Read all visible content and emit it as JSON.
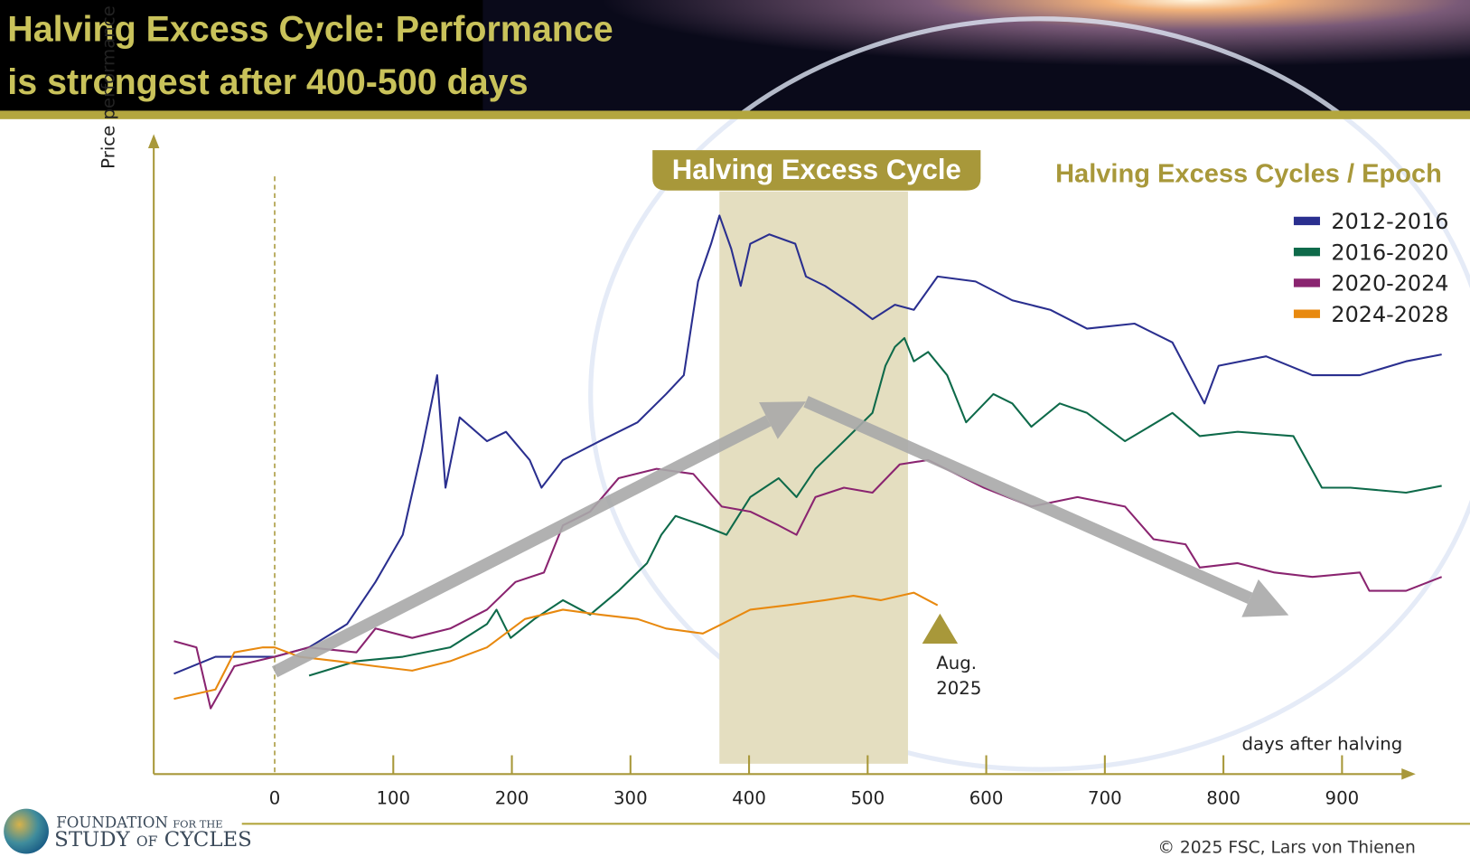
{
  "header": {
    "title_line1": "Halving Excess Cycle: Performance",
    "title_line2": "is strongest after 400-500 days"
  },
  "footer": {
    "logo_line1": "FOUNDATION",
    "logo_line1_small": "FOR THE",
    "logo_line2a": "STUDY",
    "logo_line2b": "OF",
    "logo_line2c": "CYCLES",
    "copyright": "© 2025 FSC, Lars von Thienen"
  },
  "colors": {
    "gold": "#a8983a",
    "band": "#e4dec0",
    "arrow": "#a9a9a9"
  },
  "chart_data": {
    "type": "line",
    "title": "Halving Excess Cycle",
    "legend_title": "Halving Excess Cycles / Epoch",
    "legend_placement": "top-right",
    "xlabel": "days after halving",
    "ylabel": "Price performance",
    "xlim": [
      -85,
      990
    ],
    "ylim": [
      0,
      100
    ],
    "grid": false,
    "x_ticks": [
      "0",
      "100",
      "200",
      "300",
      "400",
      "500",
      "600",
      "700",
      "800",
      "900"
    ],
    "highlight_band": {
      "label": "Halving Excess Cycle",
      "from_day": 375,
      "to_day": 534
    },
    "trend_arrows": [
      {
        "from": [
          0,
          17
        ],
        "to": [
          448,
          60
        ]
      },
      {
        "from": [
          448,
          60
        ],
        "to": [
          855,
          26
        ]
      }
    ],
    "annotation": {
      "text_line1": "Aug.",
      "text_line2": "2025",
      "day": 561
    },
    "series": [
      {
        "name": "2012-2016",
        "color": "#2a2f8f",
        "x": [
          -85,
          -50,
          0,
          29,
          61,
          85,
          108,
          124,
          137,
          144,
          156,
          179,
          195,
          215,
          225,
          243,
          274,
          306,
          330,
          345,
          357,
          368,
          375,
          385,
          393,
          401,
          417,
          439,
          448,
          464,
          488,
          504,
          523,
          539,
          559,
          591,
          622,
          654,
          685,
          725,
          757,
          784,
          796,
          836,
          875,
          915,
          954,
          984
        ],
        "y": [
          16.7,
          19.4,
          19.4,
          20.9,
          24.6,
          31.3,
          38.8,
          52.2,
          64.2,
          46.3,
          57.5,
          53.7,
          55.2,
          50.7,
          46.3,
          50.7,
          53.7,
          56.7,
          61.2,
          64.2,
          79.1,
          85.1,
          89.6,
          84.3,
          78.4,
          85.1,
          86.6,
          85.1,
          79.9,
          78.4,
          75.4,
          73.1,
          75.4,
          74.6,
          79.9,
          79.1,
          76.1,
          74.6,
          71.6,
          72.4,
          69.4,
          59.7,
          65.7,
          67.2,
          64.2,
          64.2,
          66.4,
          67.5
        ]
      },
      {
        "name": "2016-2020",
        "color": "#0e6a4a",
        "x": [
          29,
          69,
          108,
          148,
          179,
          187,
          199,
          219,
          243,
          266,
          290,
          314,
          326,
          338,
          361,
          381,
          401,
          425,
          440,
          456,
          480,
          504,
          515,
          523,
          531,
          539,
          551,
          567,
          583,
          606,
          622,
          638,
          662,
          685,
          717,
          757,
          780,
          812,
          859,
          883,
          907,
          954,
          984
        ],
        "y": [
          16.4,
          18.7,
          19.4,
          20.9,
          24.6,
          26.9,
          22.4,
          25.4,
          28.4,
          26.1,
          29.9,
          34.3,
          38.8,
          41.8,
          40.3,
          38.8,
          44.8,
          47.8,
          44.8,
          49.3,
          53.7,
          58.2,
          65.7,
          68.7,
          70.1,
          66.4,
          67.9,
          64.2,
          56.7,
          61.2,
          59.7,
          56.0,
          59.7,
          58.2,
          53.7,
          58.2,
          54.5,
          55.2,
          54.5,
          46.3,
          46.3,
          45.5,
          46.6
        ]
      },
      {
        "name": "2020-2024",
        "color": "#8a2470",
        "x": [
          -85,
          -66,
          -54,
          -34,
          0,
          29,
          69,
          85,
          116,
          148,
          179,
          203,
          227,
          243,
          266,
          290,
          322,
          353,
          377,
          401,
          425,
          440,
          456,
          480,
          504,
          527,
          551,
          598,
          638,
          677,
          717,
          741,
          768,
          780,
          812,
          843,
          875,
          915,
          923,
          954,
          984
        ],
        "y": [
          21.9,
          20.9,
          11.2,
          17.9,
          19.4,
          20.9,
          20.1,
          23.9,
          22.4,
          23.9,
          26.9,
          31.3,
          32.8,
          40.3,
          42.5,
          47.8,
          49.3,
          48.5,
          43.3,
          42.5,
          40.3,
          38.8,
          44.8,
          46.3,
          45.5,
          50.0,
          50.7,
          46.3,
          43.3,
          44.8,
          43.3,
          38.1,
          37.3,
          33.6,
          34.3,
          32.8,
          32.1,
          32.8,
          29.9,
          29.9,
          32.1
        ]
      },
      {
        "name": "2024-2028",
        "color": "#e8890f",
        "x": [
          -85,
          -50,
          -34,
          -10,
          0,
          21,
          53,
          85,
          116,
          148,
          179,
          211,
          243,
          274,
          306,
          330,
          361,
          377,
          401,
          432,
          464,
          488,
          511,
          539,
          559
        ],
        "y": [
          12.7,
          14.2,
          20.1,
          20.9,
          20.9,
          19.4,
          18.7,
          17.9,
          17.2,
          18.7,
          20.9,
          25.4,
          26.9,
          26.1,
          25.4,
          23.9,
          23.1,
          24.6,
          26.9,
          27.6,
          28.4,
          29.1,
          28.4,
          29.6,
          27.6
        ]
      }
    ]
  }
}
